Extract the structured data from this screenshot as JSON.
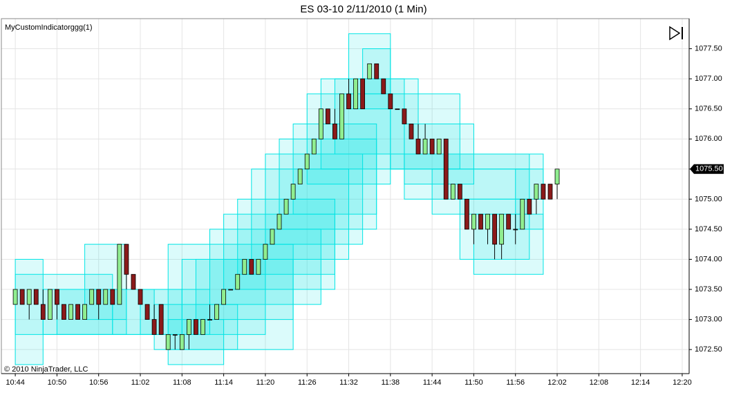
{
  "chart_data": {
    "type": "candlestick",
    "title": "ES 03-10  2/11/2010 (1 Min)",
    "indicator_label": "MyCustomIndicatorggg(1)",
    "watermark": "© 2010 NinjaTrader, LLC",
    "x": [
      "10:44",
      "10:45",
      "10:46",
      "10:47",
      "10:48",
      "10:49",
      "10:50",
      "10:51",
      "10:52",
      "10:53",
      "10:54",
      "10:55",
      "10:56",
      "10:57",
      "10:58",
      "10:59",
      "11:00",
      "11:01",
      "11:02",
      "11:03",
      "11:04",
      "11:05",
      "11:06",
      "11:07",
      "11:08",
      "11:09",
      "11:10",
      "11:11",
      "11:12",
      "11:13",
      "11:14",
      "11:15",
      "11:16",
      "11:17",
      "11:18",
      "11:19",
      "11:20",
      "11:21",
      "11:22",
      "11:23",
      "11:24",
      "11:25",
      "11:26",
      "11:27",
      "11:28",
      "11:29",
      "11:30",
      "11:31",
      "11:32",
      "11:33",
      "11:34",
      "11:35",
      "11:36",
      "11:37",
      "11:38",
      "11:39",
      "11:40",
      "11:41",
      "11:42",
      "11:43",
      "11:44",
      "11:45",
      "11:46",
      "11:47",
      "11:48",
      "11:49",
      "11:50",
      "11:51",
      "11:52",
      "11:53",
      "11:54",
      "11:55",
      "11:56",
      "11:57",
      "11:58",
      "11:59",
      "12:00",
      "12:01",
      "12:02"
    ],
    "open": [
      1073.25,
      1073.5,
      1073.25,
      1073.5,
      1073.25,
      1073.0,
      1073.5,
      1073.25,
      1073.0,
      1073.25,
      1073.0,
      1073.25,
      1073.5,
      1073.25,
      1073.5,
      1073.25,
      1074.25,
      1073.75,
      1073.5,
      1073.25,
      1073.0,
      1073.25,
      1072.5,
      1072.75,
      1072.5,
      1072.75,
      1073.0,
      1072.75,
      1073.0,
      1073.0,
      1073.25,
      1073.5,
      1073.5,
      1073.75,
      1074.0,
      1073.75,
      1074.0,
      1074.25,
      1074.5,
      1074.75,
      1075.0,
      1075.25,
      1075.5,
      1075.75,
      1076.0,
      1076.5,
      1076.25,
      1076.0,
      1076.75,
      1076.5,
      1077.0,
      1077.0,
      1077.25,
      1077.0,
      1076.75,
      1076.5,
      1076.5,
      1076.25,
      1076.0,
      1075.75,
      1076.0,
      1075.75,
      1076.0,
      1075.0,
      1075.25,
      1075.0,
      1074.5,
      1074.75,
      1074.5,
      1074.75,
      1074.25,
      1074.75,
      1074.5,
      1074.5,
      1075.0,
      1075.0,
      1075.25,
      1075.25,
      1075.25
    ],
    "high": [
      1073.5,
      1073.5,
      1073.5,
      1073.5,
      1073.5,
      1073.5,
      1073.5,
      1073.25,
      1073.25,
      1073.25,
      1073.25,
      1073.5,
      1073.5,
      1073.5,
      1073.5,
      1074.25,
      1074.25,
      1073.75,
      1073.5,
      1073.25,
      1073.25,
      1073.25,
      1072.75,
      1072.75,
      1072.75,
      1073.0,
      1073.0,
      1073.0,
      1073.25,
      1073.25,
      1073.5,
      1073.5,
      1073.75,
      1074.0,
      1074.0,
      1074.0,
      1074.25,
      1074.5,
      1074.75,
      1075.0,
      1075.25,
      1075.5,
      1075.75,
      1076.0,
      1076.5,
      1076.5,
      1076.5,
      1076.75,
      1077.0,
      1077.0,
      1077.0,
      1077.25,
      1077.25,
      1077.0,
      1076.75,
      1076.5,
      1076.5,
      1076.25,
      1076.25,
      1076.25,
      1076.0,
      1076.0,
      1076.0,
      1075.25,
      1075.25,
      1075.0,
      1074.75,
      1074.75,
      1074.75,
      1074.75,
      1074.75,
      1074.75,
      1074.75,
      1075.0,
      1075.0,
      1075.25,
      1075.25,
      1075.25,
      1075.5
    ],
    "low": [
      1073.25,
      1073.25,
      1073.0,
      1073.25,
      1073.0,
      1073.0,
      1073.0,
      1073.0,
      1073.0,
      1073.0,
      1073.0,
      1073.25,
      1073.0,
      1073.25,
      1073.25,
      1073.25,
      1073.5,
      1073.5,
      1073.25,
      1073.0,
      1072.75,
      1072.75,
      1072.5,
      1072.5,
      1072.5,
      1072.5,
      1072.75,
      1072.75,
      1073.0,
      1073.0,
      1073.25,
      1073.5,
      1073.5,
      1073.75,
      1073.75,
      1073.75,
      1074.0,
      1074.25,
      1074.5,
      1074.75,
      1075.0,
      1075.25,
      1075.5,
      1075.75,
      1076.0,
      1076.25,
      1076.0,
      1076.0,
      1076.5,
      1076.5,
      1076.5,
      1077.0,
      1077.0,
      1076.75,
      1076.5,
      1076.5,
      1076.25,
      1076.0,
      1075.75,
      1075.75,
      1075.75,
      1075.75,
      1075.0,
      1075.0,
      1075.0,
      1074.5,
      1074.25,
      1074.5,
      1074.25,
      1074.0,
      1074.0,
      1074.5,
      1074.25,
      1074.5,
      1074.75,
      1074.75,
      1075.0,
      1075.0,
      1075.0
    ],
    "close": [
      1073.5,
      1073.25,
      1073.5,
      1073.25,
      1073.0,
      1073.5,
      1073.25,
      1073.0,
      1073.25,
      1073.0,
      1073.25,
      1073.5,
      1073.25,
      1073.5,
      1073.25,
      1074.25,
      1073.75,
      1073.5,
      1073.25,
      1073.0,
      1072.75,
      1072.75,
      1072.75,
      1072.75,
      1072.75,
      1073.0,
      1072.75,
      1073.0,
      1073.0,
      1073.25,
      1073.5,
      1073.5,
      1073.75,
      1074.0,
      1073.75,
      1074.0,
      1074.25,
      1074.5,
      1074.75,
      1075.0,
      1075.25,
      1075.5,
      1075.75,
      1076.0,
      1076.5,
      1076.25,
      1076.0,
      1076.75,
      1076.5,
      1077.0,
      1076.5,
      1077.25,
      1077.0,
      1076.75,
      1076.5,
      1076.5,
      1076.25,
      1076.0,
      1075.75,
      1076.0,
      1075.75,
      1076.0,
      1075.0,
      1075.25,
      1075.0,
      1074.5,
      1074.75,
      1074.5,
      1074.75,
      1074.25,
      1074.75,
      1074.5,
      1074.5,
      1075.0,
      1074.75,
      1075.25,
      1075.0,
      1075.0,
      1075.5
    ],
    "up_color": "#90ee90",
    "down_color": "#8b1a1a",
    "box_color": "#00e5e5",
    "boxes": [
      {
        "start": "10:44",
        "end": "10:48",
        "low": 1072.25,
        "high": 1074.0
      },
      {
        "start": "10:44",
        "end": "10:58",
        "low": 1072.75,
        "high": 1073.75
      },
      {
        "start": "10:48",
        "end": "11:00",
        "low": 1072.75,
        "high": 1073.5
      },
      {
        "start": "10:50",
        "end": "11:04",
        "low": 1072.75,
        "high": 1073.5
      },
      {
        "start": "10:54",
        "end": "11:00",
        "low": 1073.0,
        "high": 1074.25
      },
      {
        "start": "10:58",
        "end": "11:08",
        "low": 1072.75,
        "high": 1073.5
      },
      {
        "start": "11:02",
        "end": "11:12",
        "low": 1072.75,
        "high": 1073.5
      },
      {
        "start": "11:04",
        "end": "11:16",
        "low": 1072.5,
        "high": 1073.25
      },
      {
        "start": "11:06",
        "end": "11:14",
        "low": 1072.25,
        "high": 1073.0
      },
      {
        "start": "11:06",
        "end": "11:24",
        "low": 1072.5,
        "high": 1074.25
      },
      {
        "start": "11:08",
        "end": "11:20",
        "low": 1072.75,
        "high": 1074.0
      },
      {
        "start": "11:10",
        "end": "11:24",
        "low": 1073.0,
        "high": 1074.0
      },
      {
        "start": "11:12",
        "end": "11:28",
        "low": 1073.25,
        "high": 1074.5
      },
      {
        "start": "11:14",
        "end": "11:30",
        "low": 1073.5,
        "high": 1074.75
      },
      {
        "start": "11:16",
        "end": "11:30",
        "low": 1073.75,
        "high": 1075.0
      },
      {
        "start": "11:18",
        "end": "11:32",
        "low": 1074.0,
        "high": 1075.5
      },
      {
        "start": "11:20",
        "end": "11:34",
        "low": 1074.25,
        "high": 1075.75
      },
      {
        "start": "11:22",
        "end": "11:36",
        "low": 1074.5,
        "high": 1076.0
      },
      {
        "start": "11:24",
        "end": "11:36",
        "low": 1074.75,
        "high": 1076.25
      },
      {
        "start": "11:26",
        "end": "11:38",
        "low": 1075.25,
        "high": 1076.75
      },
      {
        "start": "11:28",
        "end": "11:40",
        "low": 1075.5,
        "high": 1077.0
      },
      {
        "start": "11:30",
        "end": "11:42",
        "low": 1075.75,
        "high": 1077.0
      },
      {
        "start": "11:32",
        "end": "11:38",
        "low": 1076.5,
        "high": 1077.75
      },
      {
        "start": "11:34",
        "end": "11:38",
        "low": 1076.75,
        "high": 1077.5
      },
      {
        "start": "11:38",
        "end": "11:48",
        "low": 1075.5,
        "high": 1076.75
      },
      {
        "start": "11:40",
        "end": "11:50",
        "low": 1075.25,
        "high": 1076.25
      },
      {
        "start": "11:38",
        "end": "11:58",
        "low": 1075.5,
        "high": 1075.75
      },
      {
        "start": "11:40",
        "end": "12:00",
        "low": 1075.0,
        "high": 1075.75
      },
      {
        "start": "11:44",
        "end": "11:58",
        "low": 1074.75,
        "high": 1075.5
      },
      {
        "start": "11:48",
        "end": "11:58",
        "low": 1074.0,
        "high": 1075.0
      },
      {
        "start": "11:50",
        "end": "12:00",
        "low": 1073.75,
        "high": 1074.75
      },
      {
        "start": "11:56",
        "end": "12:00",
        "low": 1074.5,
        "high": 1075.5
      }
    ],
    "xlim": [
      "10:42",
      "12:21"
    ],
    "xticks": [
      "10:44",
      "10:50",
      "10:56",
      "11:02",
      "11:08",
      "11:14",
      "11:20",
      "11:26",
      "11:32",
      "11:38",
      "11:44",
      "11:50",
      "11:56",
      "12:02",
      "12:08",
      "12:14",
      "12:20"
    ],
    "ylim": [
      1072.1,
      1078.0
    ],
    "yticks": [
      {
        "value": 1072.5,
        "label": "1072.50"
      },
      {
        "value": 1073.0,
        "label": "1073.00"
      },
      {
        "value": 1073.5,
        "label": "1073.50"
      },
      {
        "value": 1074.0,
        "label": "1074.00"
      },
      {
        "value": 1074.5,
        "label": "1074.50"
      },
      {
        "value": 1075.0,
        "label": "1075.00"
      },
      {
        "value": 1075.5,
        "label": "1075.50"
      },
      {
        "value": 1076.0,
        "label": "1076.00"
      },
      {
        "value": 1076.5,
        "label": "1076.50"
      },
      {
        "value": 1077.0,
        "label": "1077.00"
      },
      {
        "value": 1077.5,
        "label": "1077.50"
      }
    ],
    "last_price": {
      "value": 1075.5,
      "label": "1075.50"
    },
    "grid": true
  }
}
